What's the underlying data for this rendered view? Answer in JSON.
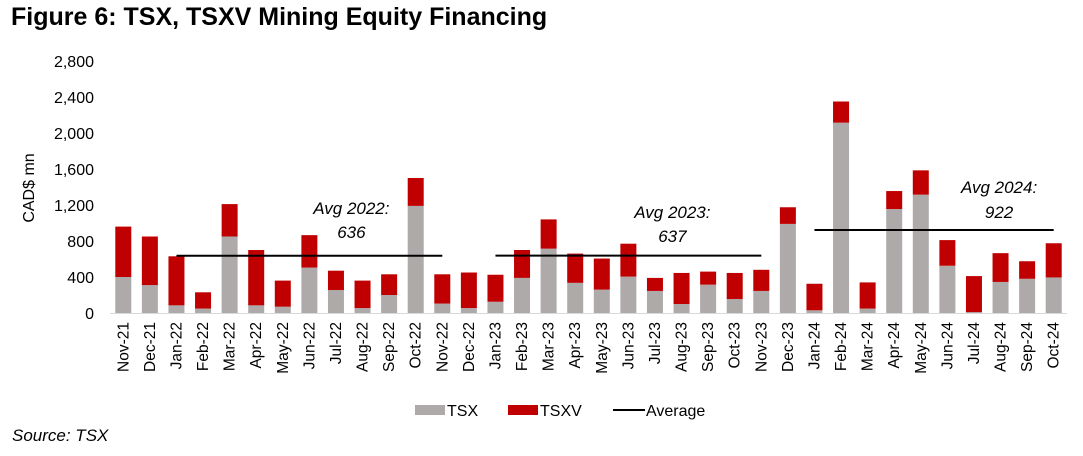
{
  "title": "Figure 6: TSX, TSXV Mining Equity Financing",
  "source": "Source: TSX",
  "colors": {
    "tsx": "#AEAAAA",
    "tsxv": "#C00000",
    "average": "#000000"
  },
  "chart_data": {
    "type": "bar",
    "stacked": true,
    "title": "Figure 6: TSX, TSXV Mining Equity Financing",
    "xlabel": "",
    "ylabel": "CAD$ mn",
    "ylim": [
      0,
      2800
    ],
    "yticks": [
      0,
      400,
      800,
      1200,
      1600,
      2000,
      2400,
      2800
    ],
    "ytick_labels": [
      "0",
      "400",
      "800",
      "1,200",
      "1,600",
      "2,000",
      "2,400",
      "2,800"
    ],
    "grid": false,
    "legend_position": "bottom",
    "categories": [
      "Nov-21",
      "Dec-21",
      "Jan-22",
      "Feb-22",
      "Mar-22",
      "Apr-22",
      "May-22",
      "Jun-22",
      "Jul-22",
      "Aug-22",
      "Sep-22",
      "Oct-22",
      "Nov-22",
      "Dec-22",
      "Jan-23",
      "Feb-23",
      "Mar-23",
      "Apr-23",
      "May-23",
      "Jun-23",
      "Jul-23",
      "Aug-23",
      "Sep-23",
      "Oct-23",
      "Nov-23",
      "Dec-23",
      "Jan-24",
      "Feb-24",
      "Mar-24",
      "Apr-24",
      "May-24",
      "Jun-24",
      "Jul-24",
      "Aug-24",
      "Sep-24",
      "Oct-24"
    ],
    "series": [
      {
        "name": "TSX",
        "values": [
          400,
          310,
          85,
          50,
          850,
          85,
          70,
          505,
          255,
          55,
          200,
          1190,
          105,
          55,
          125,
          390,
          715,
          335,
          260,
          405,
          245,
          100,
          315,
          155,
          245,
          990,
          30,
          2115,
          50,
          1155,
          1315,
          525,
          10,
          345,
          380,
          395
        ]
      },
      {
        "name": "TSXV",
        "values": [
          560,
          540,
          545,
          180,
          360,
          615,
          290,
          360,
          215,
          305,
          230,
          310,
          325,
          395,
          300,
          310,
          325,
          325,
          345,
          365,
          145,
          345,
          145,
          290,
          235,
          185,
          295,
          235,
          290,
          200,
          270,
          285,
          400,
          320,
          195,
          380
        ]
      }
    ],
    "averages": [
      {
        "name": "Average",
        "label_line1": "Avg 2022:",
        "label_line2": "636",
        "value": 636,
        "from": "Jan-22",
        "to": "Nov-22"
      },
      {
        "name": "Average",
        "label_line1": "Avg 2023:",
        "label_line2": "637",
        "value": 637,
        "from": "Jan-23",
        "to": "Nov-23"
      },
      {
        "name": "Average",
        "label_line1": "Avg 2024:",
        "label_line2": "922",
        "value": 922,
        "from": "Jan-24",
        "to": "Oct-24"
      }
    ],
    "legend": [
      "TSX",
      "TSXV",
      "Average"
    ]
  }
}
